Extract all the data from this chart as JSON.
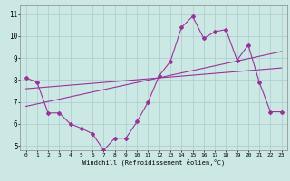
{
  "title": "",
  "xlabel": "Windchill (Refroidissement éolien,°C)",
  "background_color": "#cce8e4",
  "line_color": "#993399",
  "grid_color": "#aacccc",
  "xlim": [
    -0.5,
    23.5
  ],
  "ylim": [
    4.8,
    11.4
  ],
  "xticks": [
    0,
    1,
    2,
    3,
    4,
    5,
    6,
    7,
    8,
    9,
    10,
    11,
    12,
    13,
    14,
    15,
    16,
    17,
    18,
    19,
    20,
    21,
    22,
    23
  ],
  "yticks": [
    5,
    6,
    7,
    8,
    9,
    10,
    11
  ],
  "series1_x": [
    0,
    1,
    2,
    3,
    4,
    5,
    6,
    7,
    8,
    9,
    10,
    11,
    12,
    13,
    14,
    15,
    16,
    17,
    18,
    19,
    20,
    21,
    22,
    23
  ],
  "series1_y": [
    8.1,
    7.9,
    6.5,
    6.5,
    6.0,
    5.8,
    5.55,
    4.8,
    5.35,
    5.35,
    6.1,
    7.0,
    8.2,
    8.85,
    10.4,
    10.9,
    9.9,
    10.2,
    10.3,
    8.9,
    9.6,
    7.9,
    6.55,
    6.55
  ],
  "series2_x": [
    0,
    23
  ],
  "series2_y": [
    6.8,
    9.3
  ],
  "series3_x": [
    0,
    23
  ],
  "series3_y": [
    7.6,
    8.55
  ]
}
